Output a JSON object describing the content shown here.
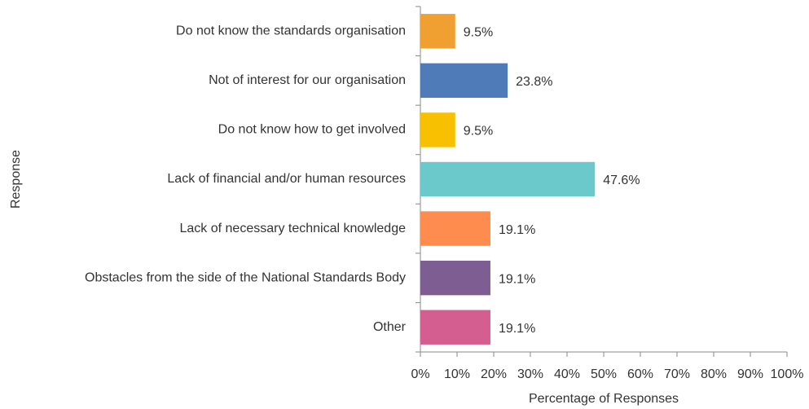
{
  "chart_data": {
    "type": "bar",
    "orientation": "horizontal",
    "categories": [
      "Do not know the standards organisation",
      "Not of interest for our organisation",
      "Do not know how to get involved",
      "Lack of financial and/or human resources",
      "Lack of necessary technical knowledge",
      "Obstacles from the side of the National Standards Body",
      "Other"
    ],
    "values": [
      9.5,
      23.8,
      9.5,
      47.6,
      19.1,
      19.1,
      19.1
    ],
    "value_labels": [
      "9.5%",
      "23.8%",
      "9.5%",
      "47.6%",
      "19.1%",
      "19.1%",
      "19.1%"
    ],
    "colors": [
      "#f0a030",
      "#4f7bb8",
      "#f7c000",
      "#6bc9cc",
      "#fd8c4e",
      "#7e5e92",
      "#d35e8f"
    ],
    "xlabel": "Percentage of Responses",
    "ylabel": "Response",
    "xlim": [
      0,
      100
    ],
    "xticks": [
      {
        "value": 0,
        "label": "0%"
      },
      {
        "value": 10,
        "label": "10%"
      },
      {
        "value": 20,
        "label": "20%"
      },
      {
        "value": 30,
        "label": "30%"
      },
      {
        "value": 40,
        "label": "40%"
      },
      {
        "value": 50,
        "label": "50%"
      },
      {
        "value": 60,
        "label": "60%"
      },
      {
        "value": 70,
        "label": "70%"
      },
      {
        "value": 80,
        "label": "80%"
      },
      {
        "value": 90,
        "label": "90%"
      },
      {
        "value": 100,
        "label": "100%"
      }
    ],
    "grid": false
  }
}
